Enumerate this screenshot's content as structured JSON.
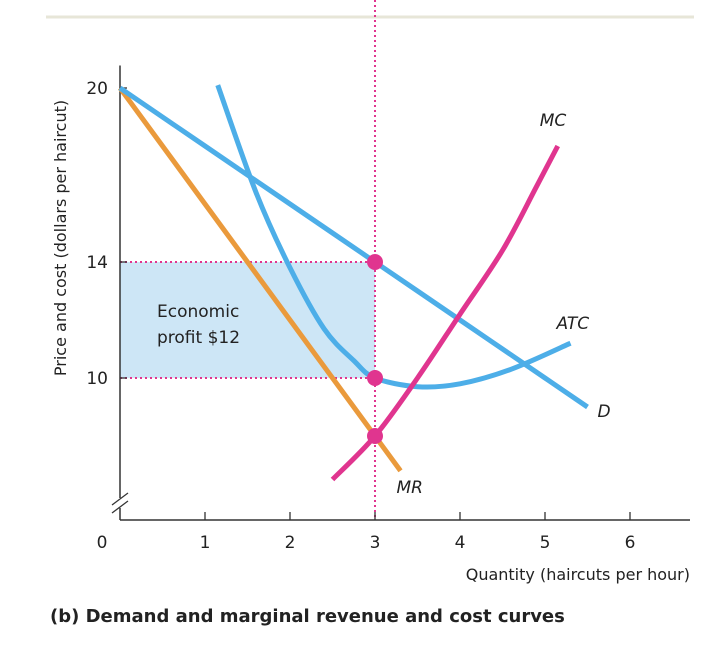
{
  "chart_data": {
    "type": "line",
    "caption": "(b) Demand and marginal revenue and cost curves",
    "xlabel": "Quantity (haircuts per hour)",
    "ylabel": "Price and cost (dollars per haircut)",
    "xlim": [
      0,
      7.6
    ],
    "ylim": [
      5,
      20.5
    ],
    "x_axis_break": true,
    "x_ticks": [
      "0",
      "1",
      "2",
      "3",
      "4",
      "5",
      "6"
    ],
    "y_ticks": [
      "10",
      "14",
      "20"
    ],
    "highlight_x_tick": "3",
    "series": [
      {
        "name": "D",
        "color": "#4DAEE8",
        "points": [
          [
            0,
            20
          ],
          [
            1,
            18
          ],
          [
            2,
            16
          ],
          [
            3,
            14
          ],
          [
            4,
            12
          ],
          [
            5,
            10
          ],
          [
            5.5,
            9
          ]
        ]
      },
      {
        "name": "MR",
        "color": "#EA9A3C",
        "points": [
          [
            0,
            20
          ],
          [
            1,
            16
          ],
          [
            2,
            12
          ],
          [
            3,
            8
          ],
          [
            3.3,
            6.8
          ]
        ]
      },
      {
        "name": "ATC",
        "color": "#4DAEE8",
        "points": [
          [
            1.15,
            20.1
          ],
          [
            1.6,
            16.4
          ],
          [
            2.0,
            13.8
          ],
          [
            2.4,
            11.7
          ],
          [
            2.75,
            10.6
          ],
          [
            3.0,
            10.0
          ],
          [
            3.5,
            9.7
          ],
          [
            4.0,
            9.8
          ],
          [
            4.6,
            10.3
          ],
          [
            5.3,
            11.2
          ]
        ]
      },
      {
        "name": "MC",
        "color": "#E0358F",
        "points": [
          [
            2.5,
            6.5
          ],
          [
            3.0,
            8.0
          ],
          [
            3.5,
            10.0
          ],
          [
            4.0,
            12.2
          ],
          [
            4.5,
            14.4
          ],
          [
            4.9,
            16.6
          ],
          [
            5.15,
            18.0
          ]
        ]
      }
    ],
    "equilibrium": {
      "quantity": 3,
      "price": 14,
      "atc": 10,
      "mr_mc": 8
    },
    "shaded_area": {
      "label": "Economic profit $12",
      "x": [
        0,
        3
      ],
      "y": [
        10,
        14
      ],
      "color": "#CDE6F6"
    },
    "profit_label_lines": [
      "Economic",
      "profit $12"
    ],
    "point_color": "#E0358F"
  }
}
